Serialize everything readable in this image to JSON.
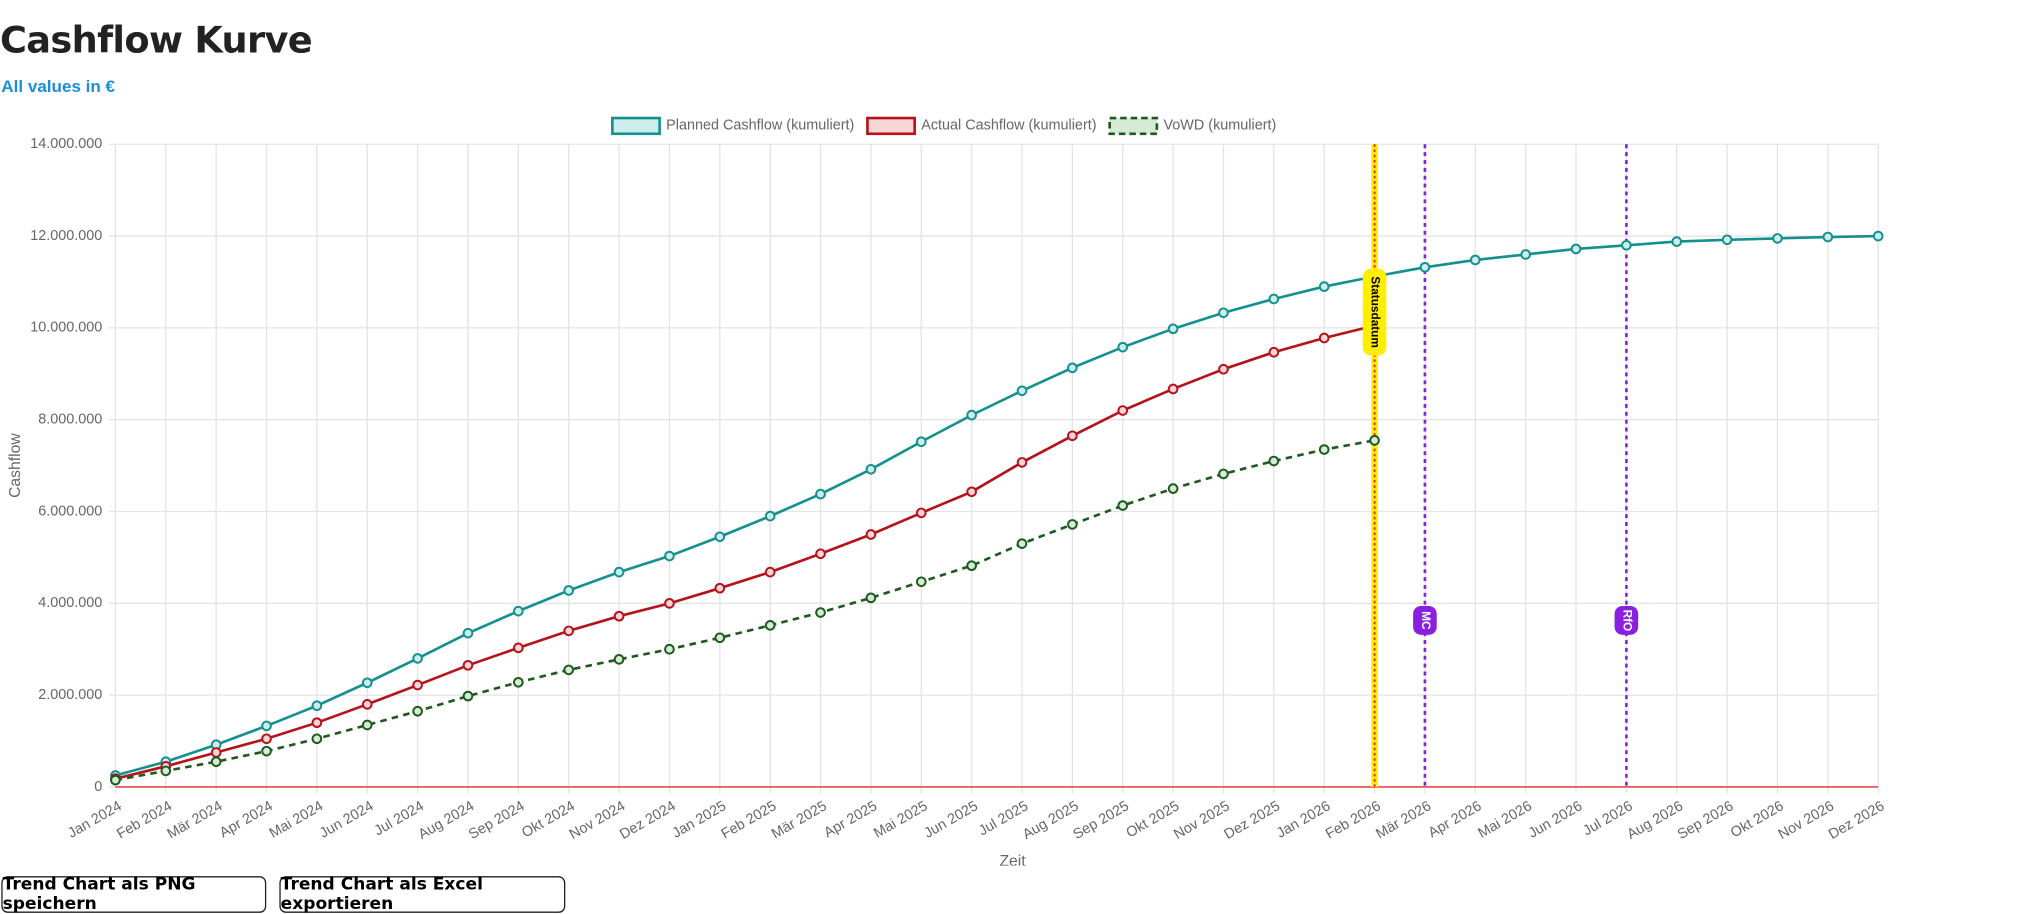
{
  "header": {
    "title": "Cashflow Kurve",
    "subtitle": "All values in €"
  },
  "chart_data": {
    "type": "line",
    "x_label": "Zeit",
    "y_label": "Cashflow",
    "categories": [
      "Jan 2024",
      "Feb 2024",
      "Mär 2024",
      "Apr 2024",
      "Mai 2024",
      "Jun 2024",
      "Jul 2024",
      "Aug 2024",
      "Sep 2024",
      "Okt 2024",
      "Nov 2024",
      "Dez 2024",
      "Jan 2025",
      "Feb 2025",
      "Mär 2025",
      "Apr 2025",
      "Mai 2025",
      "Jun 2025",
      "Jul 2025",
      "Aug 2025",
      "Sep 2025",
      "Okt 2025",
      "Nov 2025",
      "Dez 2025",
      "Jan 2026",
      "Feb 2026",
      "Mär 2026",
      "Apr 2026",
      "Mai 2026",
      "Jun 2026",
      "Jul 2026",
      "Aug 2026",
      "Sep 2026",
      "Okt 2026",
      "Nov 2026",
      "Dez 2026"
    ],
    "series": [
      {
        "name": "Planned Cashflow (kumuliert)",
        "color": "#14908f",
        "fill": "#cdeceb",
        "dashed": false,
        "values": [
          250000,
          550000,
          920000,
          1330000,
          1770000,
          2270000,
          2800000,
          3350000,
          3830000,
          4280000,
          4680000,
          5030000,
          5450000,
          5900000,
          6380000,
          6920000,
          7520000,
          8100000,
          8630000,
          9130000,
          9580000,
          9980000,
          10330000,
          10630000,
          10900000,
          11120000,
          11320000,
          11480000,
          11600000,
          11720000,
          11800000,
          11880000,
          11920000,
          11950000,
          11980000,
          12000000
        ]
      },
      {
        "name": "Actual Cashflow (kumuliert)",
        "color": "#b5121b",
        "fill": "#f7d6d8",
        "dashed": false,
        "values": [
          180000,
          450000,
          750000,
          1050000,
          1400000,
          1800000,
          2220000,
          2650000,
          3030000,
          3400000,
          3720000,
          4000000,
          4330000,
          4680000,
          5080000,
          5500000,
          5970000,
          6430000,
          7070000,
          7650000,
          8200000,
          8670000,
          9100000,
          9470000,
          9780000,
          10050000,
          null,
          null,
          null,
          null,
          null,
          null,
          null,
          null,
          null,
          null
        ]
      },
      {
        "name": "VoWD (kumuliert)",
        "color": "#1e5a1e",
        "fill": "#d6ebd6",
        "dashed": true,
        "values": [
          150000,
          350000,
          550000,
          780000,
          1050000,
          1350000,
          1650000,
          1980000,
          2280000,
          2550000,
          2780000,
          3000000,
          3250000,
          3520000,
          3800000,
          4120000,
          4470000,
          4820000,
          5300000,
          5720000,
          6130000,
          6500000,
          6820000,
          7100000,
          7350000,
          7550000,
          null,
          null,
          null,
          null,
          null,
          null,
          null,
          null,
          null,
          null
        ]
      }
    ],
    "ylim": [
      0,
      14000000
    ],
    "yticks": [
      0,
      {
        "value": 2000000,
        "label": "2.000.000"
      },
      {
        "value": 4000000,
        "label": "4.000.000"
      },
      {
        "value": 6000000,
        "label": "6.000.000"
      },
      {
        "value": 8000000,
        "label": "8.000.000"
      },
      {
        "value": 10000000,
        "label": "10.000.000"
      },
      {
        "value": 12000000,
        "label": "12.000.000"
      },
      {
        "value": 14000000,
        "label": "14.000.000"
      }
    ],
    "grid": true,
    "baseline_color": "#e84c4c",
    "legend": "top",
    "annotations": [
      {
        "x": "Feb 2026",
        "label": "Statusdatum",
        "color": "#ffee00",
        "line_color": "#e0332b",
        "text_color": "#000"
      },
      {
        "x": "Mär 2026",
        "label": "MC",
        "color": "#8a1fe0",
        "line_color": "#8a1fe0",
        "text_color": "#fff"
      },
      {
        "x": "Jul 2026",
        "label": "RfO",
        "color": "#8a1fe0",
        "line_color": "#8a1fe0",
        "text_color": "#fff"
      }
    ]
  },
  "buttons": [
    "Trend Chart als PNG speichern",
    "Trend Chart als Excel exportieren"
  ]
}
